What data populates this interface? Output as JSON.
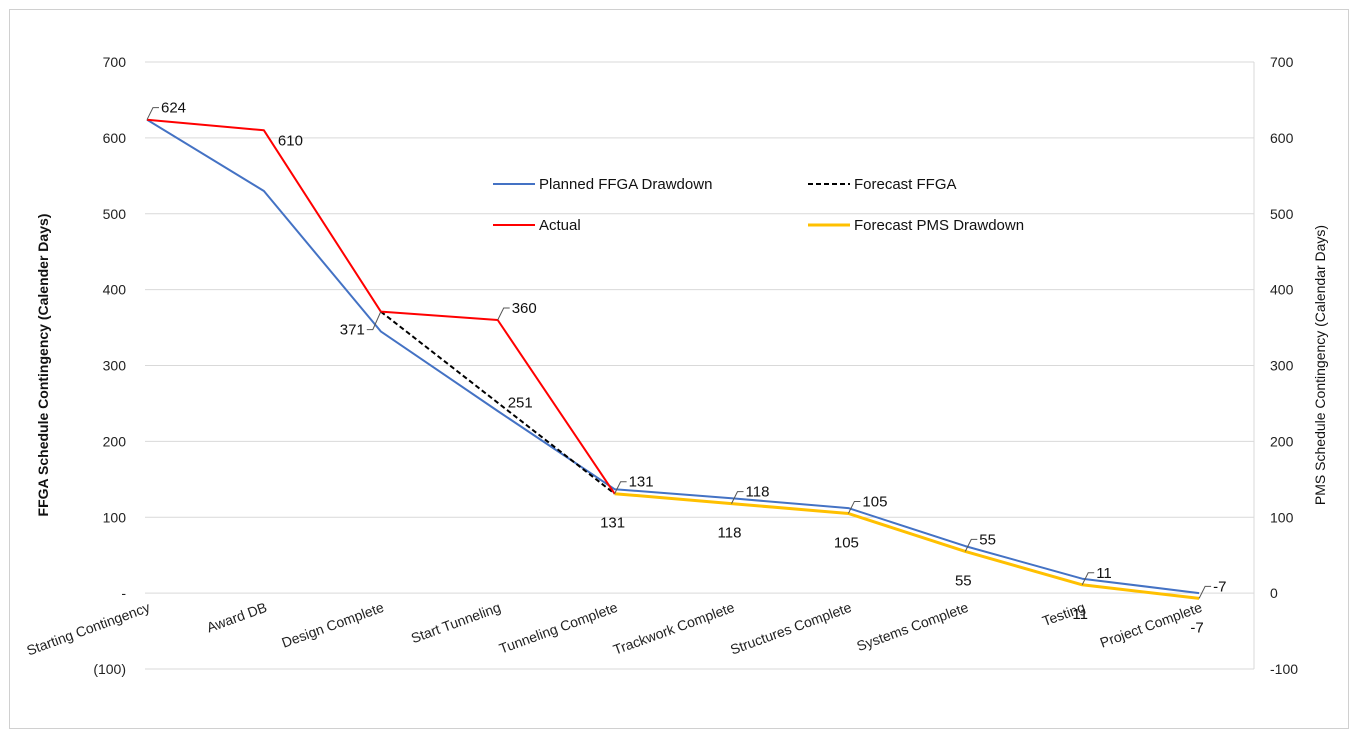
{
  "chart_data": {
    "type": "line",
    "categories": [
      "Starting Contingency",
      "Award DB",
      "Design Complete",
      "Start Tunneling",
      "Tunneling Complete",
      "Trackwork Complete",
      "Structures Complete",
      "Systems Complete",
      "Testing",
      "Project Complete"
    ],
    "ylabel_left": "FFGA Schedule Contingency (Calender Days)",
    "ylabel_right": "PMS Schedule Contingency (Calendar Days)",
    "ylim": [
      -100,
      700
    ],
    "left_ticks": [
      "(100)",
      "-",
      "100",
      "200",
      "300",
      "400",
      "500",
      "600",
      "700"
    ],
    "right_ticks": [
      "-100",
      "0",
      "100",
      "200",
      "300",
      "400",
      "500",
      "600",
      "700"
    ],
    "grid": "horizontal",
    "legend_placement": "center",
    "series": [
      {
        "name": "Planned FFGA Drawdown",
        "color": "#4472c4",
        "dash": "solid",
        "values": [
          624,
          530,
          345,
          240,
          137,
          125,
          112,
          62,
          19,
          0
        ]
      },
      {
        "name": "Forecast FFGA",
        "color": "#000000",
        "dash": "dashed",
        "values": [
          null,
          null,
          371,
          251,
          131,
          null,
          null,
          null,
          null,
          null
        ]
      },
      {
        "name": "Actual",
        "color": "#ff0000",
        "dash": "solid",
        "values": [
          624,
          610,
          371,
          360,
          131,
          null,
          null,
          null,
          null,
          null
        ]
      },
      {
        "name": "Forecast PMS Drawdown",
        "color": "#ffc000",
        "dash": "solid",
        "values": [
          null,
          null,
          null,
          null,
          131,
          118,
          105,
          55,
          11,
          -7
        ]
      }
    ],
    "data_labels": [
      {
        "text": "624",
        "category": 0,
        "value": 624,
        "leader": true
      },
      {
        "text": "610",
        "category": 1,
        "value": 610,
        "leader": false
      },
      {
        "text": "371",
        "category": 2,
        "value": 371,
        "leader": true,
        "side": "left"
      },
      {
        "text": "360",
        "category": 3,
        "value": 360,
        "leader": true
      },
      {
        "text": "251",
        "category": 3,
        "value": 251,
        "leader": false,
        "offset": "mid"
      },
      {
        "text": "131",
        "category": 4,
        "value": 131,
        "leader": true
      },
      {
        "text": "131",
        "category": 4,
        "value": 131,
        "leader": false,
        "side": "below"
      },
      {
        "text": "118",
        "category": 5,
        "value": 118,
        "leader": true
      },
      {
        "text": "118",
        "category": 5,
        "value": 118,
        "leader": false,
        "side": "below"
      },
      {
        "text": "105",
        "category": 6,
        "value": 105,
        "leader": true
      },
      {
        "text": "105",
        "category": 6,
        "value": 105,
        "leader": false,
        "side": "below"
      },
      {
        "text": "55",
        "category": 7,
        "value": 55,
        "leader": true
      },
      {
        "text": "55",
        "category": 7,
        "value": 55,
        "leader": false,
        "side": "below"
      },
      {
        "text": "11",
        "category": 8,
        "value": 11,
        "leader": true
      },
      {
        "text": "11",
        "category": 8,
        "value": 11,
        "leader": false,
        "side": "below"
      },
      {
        "text": "-7",
        "category": 9,
        "value": -7,
        "leader": true
      },
      {
        "text": "-7",
        "category": 9,
        "value": -7,
        "leader": false,
        "side": "below"
      }
    ]
  }
}
